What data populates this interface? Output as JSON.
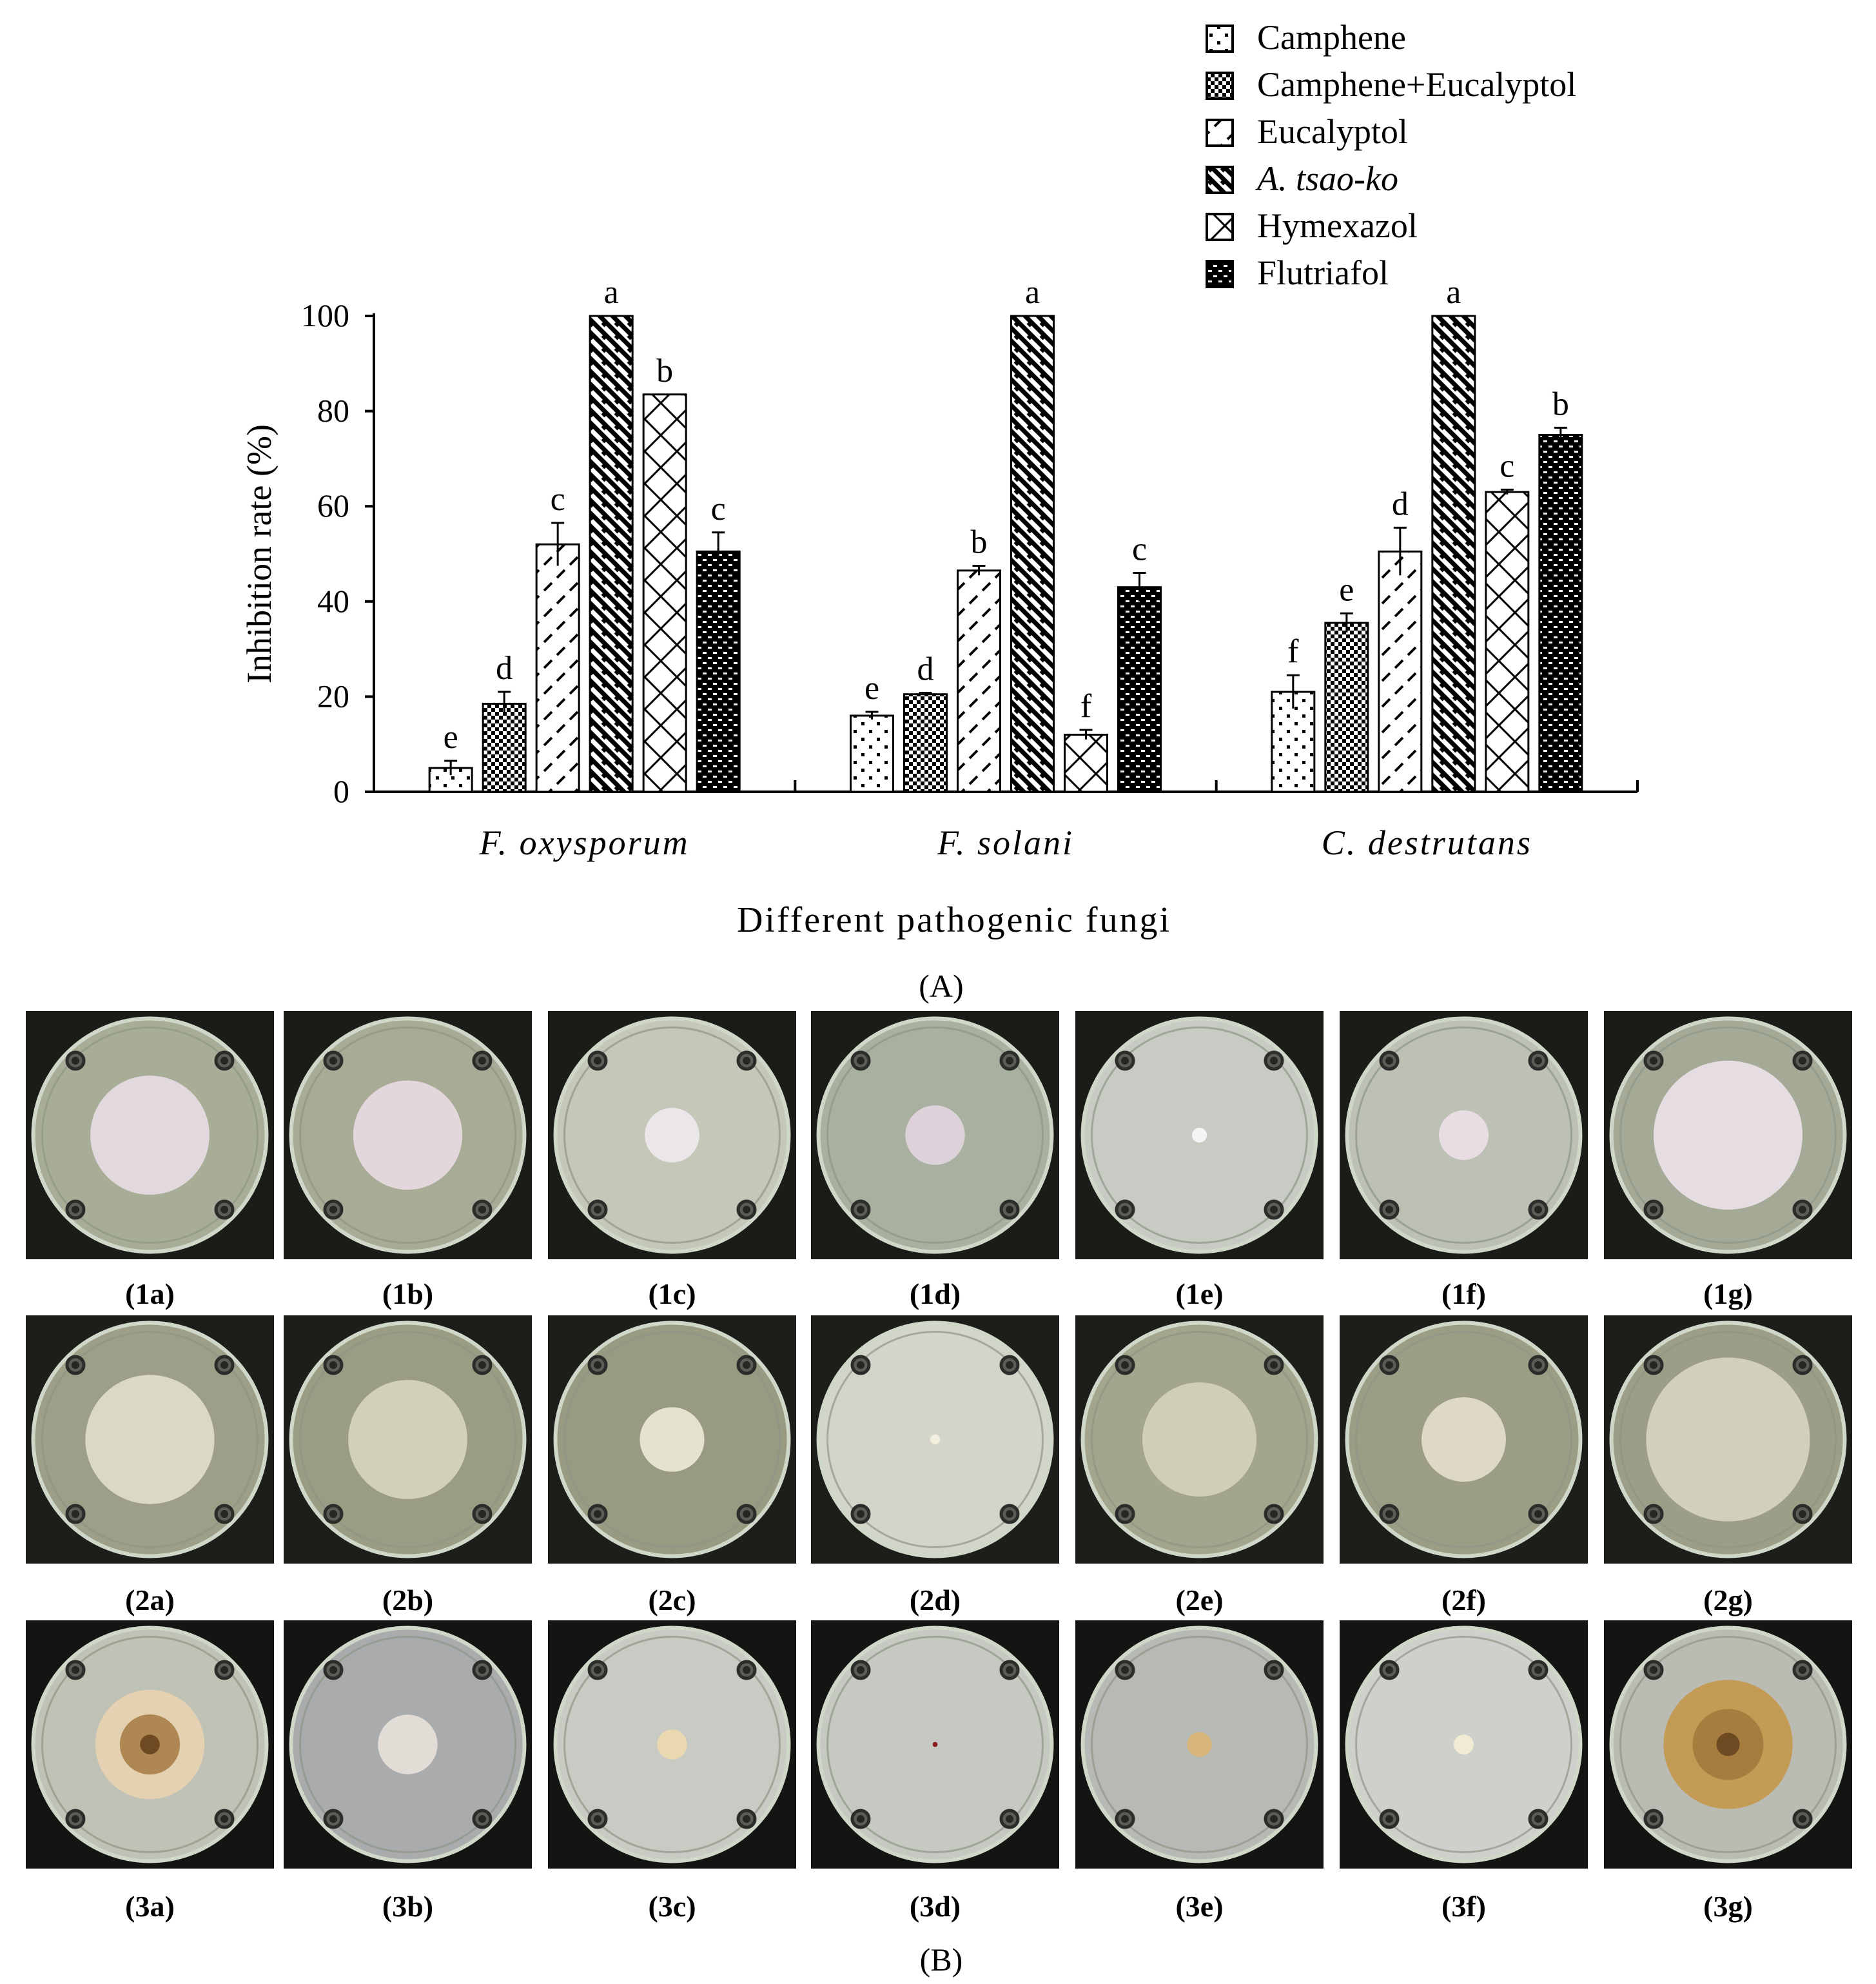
{
  "chart_data": {
    "type": "bar",
    "title": "",
    "xlabel": "Different pathogenic fungi",
    "ylabel": "Inhibition rate (%)",
    "ylim": [
      0,
      100
    ],
    "yticks": [
      "0",
      "20",
      "40",
      "60",
      "80",
      "100"
    ],
    "categories": [
      "F. oxysporum",
      "F. solani",
      "C. destrutans"
    ],
    "series": [
      {
        "name": "Camphene",
        "values": [
          5,
          16,
          21
        ],
        "errors": [
          1.5,
          0.8,
          3.5
        ],
        "letters": [
          "e",
          "e",
          "f"
        ],
        "pattern": "dots"
      },
      {
        "name": "Camphene+Eucalyptol",
        "values": [
          18.5,
          20.5,
          35.5
        ],
        "errors": [
          2.5,
          0.3,
          2.0
        ],
        "letters": [
          "d",
          "d",
          "e"
        ],
        "pattern": "check"
      },
      {
        "name": "Eucalyptol",
        "values": [
          52,
          46.5,
          50.5
        ],
        "errors": [
          4.5,
          1.0,
          5.0
        ],
        "letters": [
          "c",
          "b",
          "d"
        ],
        "pattern": "dashdiag"
      },
      {
        "name": "A. tsao-ko",
        "values": [
          100,
          100,
          100
        ],
        "errors": [
          0,
          0,
          0
        ],
        "letters": [
          "a",
          "a",
          "a"
        ],
        "pattern": "diagdense",
        "italic": true
      },
      {
        "name": "Hymexazol",
        "values": [
          83.5,
          12,
          63
        ],
        "errors": [
          0,
          1.0,
          0.5
        ],
        "letters": [
          "b",
          "f",
          "c"
        ],
        "pattern": "crosshatch"
      },
      {
        "name": "Flutriafol",
        "values": [
          50.5,
          43,
          75
        ],
        "errors": [
          4.0,
          3.0,
          1.5
        ],
        "letters": [
          "c",
          "c",
          "b"
        ],
        "pattern": "brick"
      }
    ]
  },
  "panels": {
    "a_label": "(A)",
    "b_label": "(B)"
  },
  "plates": {
    "row1": [
      "(1a)",
      "(1b)",
      "(1c)",
      "(1d)",
      "(1e)",
      "(1f)",
      "(1g)"
    ],
    "row2": [
      "(2a)",
      "(2b)",
      "(2c)",
      "(2d)",
      "(2e)",
      "(2f)",
      "(2g)"
    ],
    "row3": [
      "(3a)",
      "(3b)",
      "(3c)",
      "(3d)",
      "(3e)",
      "(3f)",
      "(3g)"
    ]
  },
  "colors": {
    "plate_bg_dark": "#1a1a18",
    "agar_green": "#b9bcaa",
    "mycelium_pink": "#e4dade",
    "mycelium_cream": "#e8e6d8",
    "mycelium_tan": "#d9c4a0",
    "mycelium_brown": "#9a7a40"
  }
}
